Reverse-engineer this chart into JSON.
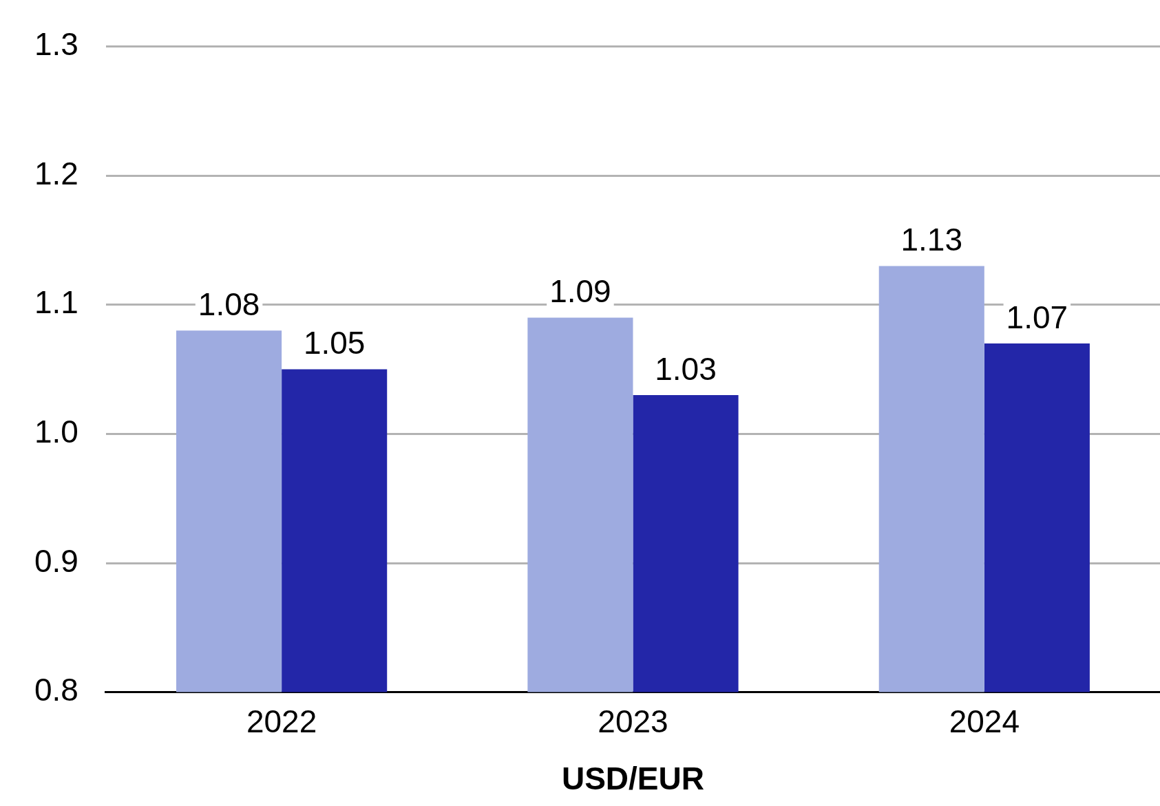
{
  "chart_data": {
    "type": "bar",
    "xlabel": "USD/EUR",
    "categories": [
      "2022",
      "2023",
      "2024"
    ],
    "series": [
      {
        "color": "#9eabe0",
        "values": [
          1.08,
          1.09,
          1.13
        ]
      },
      {
        "color": "#2326a8",
        "values": [
          1.05,
          1.03,
          1.07
        ]
      }
    ],
    "ylim": [
      0.8,
      1.3
    ],
    "yticks": [
      0.8,
      0.9,
      {
        "value": 1.0,
        "label": "1.0"
      },
      1.1,
      1.2,
      1.3
    ],
    "grid": "y",
    "legend": false,
    "data_labels": true
  }
}
